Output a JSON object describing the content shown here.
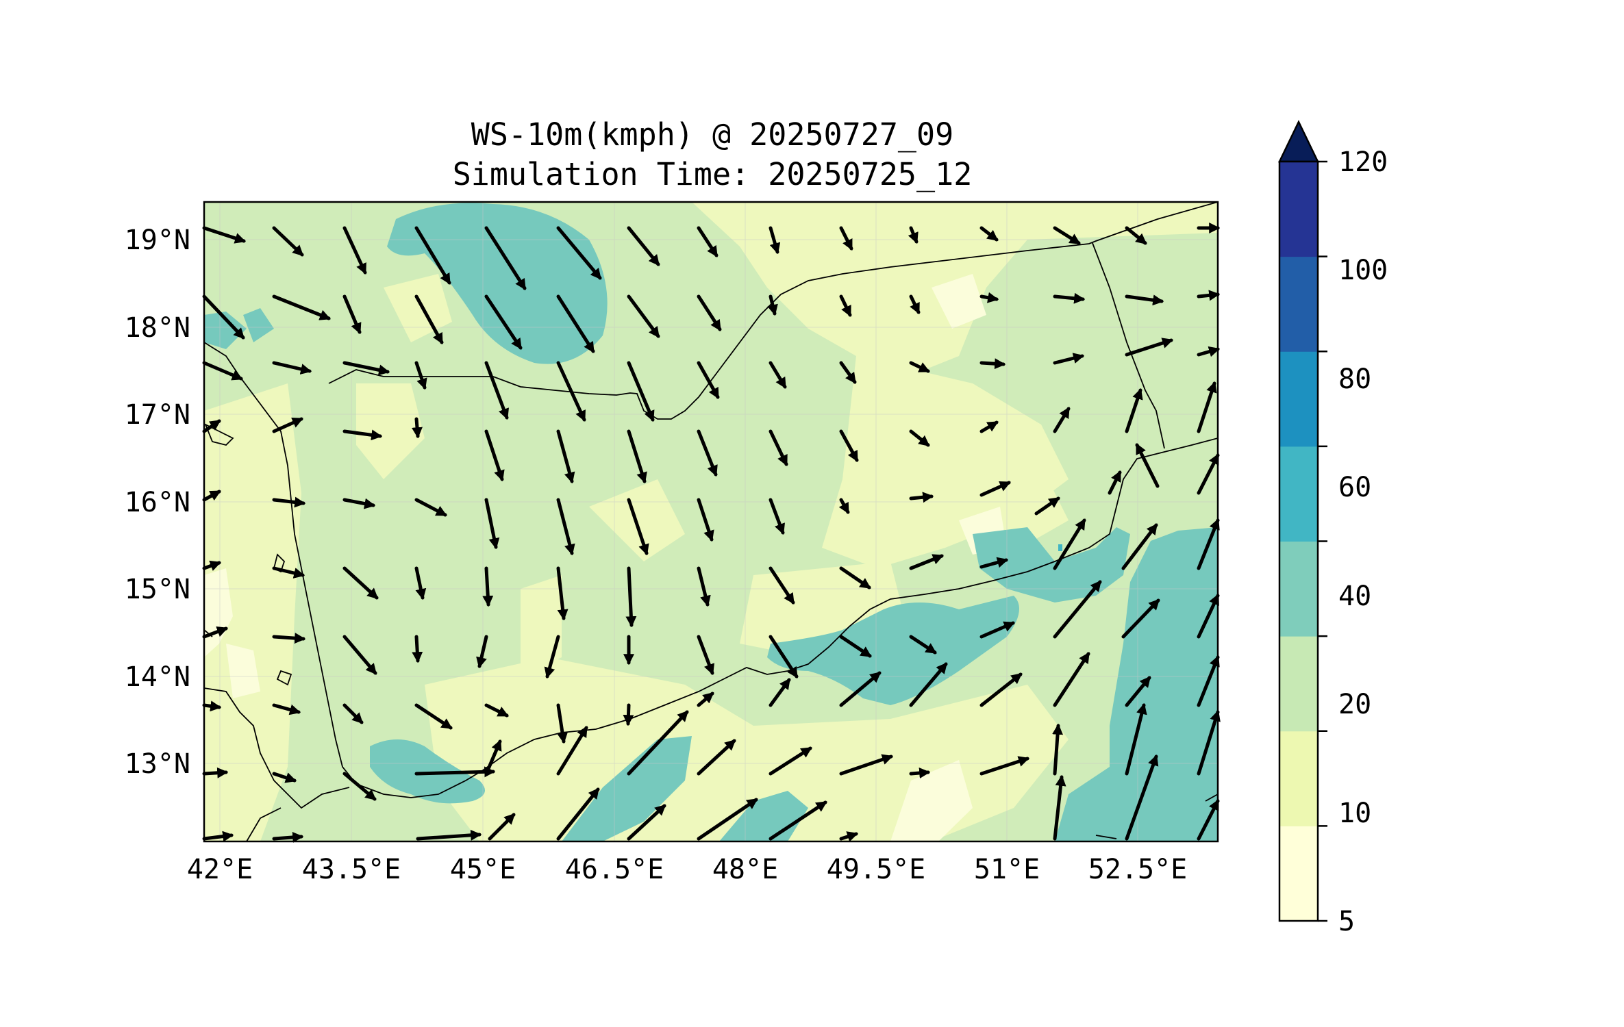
{
  "title": {
    "line1": "WS-10m(kmph) @ 20250727_09",
    "line2": "Simulation Time: 20250725_12"
  },
  "map": {
    "type": "wind-speed-contour-with-vectors",
    "region": "Yemen",
    "lon_range": [
      41.75,
      53.35
    ],
    "lat_range": [
      12.1,
      19.45
    ],
    "lon_ticks": [
      "42°E",
      "43.5°E",
      "45°E",
      "46.5°E",
      "48°E",
      "49.5°E",
      "51°E",
      "52.5°E"
    ],
    "lat_ticks": [
      "19°N",
      "18°N",
      "17°N",
      "16°N",
      "15°N",
      "14°N",
      "13°N"
    ],
    "gridlines": true,
    "quantity": "wind speed at 10 m",
    "units": "kmph"
  },
  "colorbar": {
    "levels": [
      5,
      10,
      20,
      40,
      60,
      80,
      100,
      120
    ],
    "tick_labels": [
      "5",
      "10",
      "20",
      "40",
      "60",
      "80",
      "100",
      "120"
    ],
    "colors": [
      "#ffffd9",
      "#edf8b1",
      "#c7e9b4",
      "#7fcdbb",
      "#41b6c4",
      "#1d91c0",
      "#225ea8",
      "#253494"
    ],
    "extend_color": "#081d58",
    "extend": "max"
  }
}
